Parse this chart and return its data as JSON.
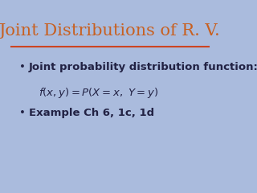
{
  "title": "Joint Distributions of R. V.",
  "title_color": "#c86020",
  "background_color": "#aabbdd",
  "divider_color": "#cc4422",
  "bullet1_line1": "Joint probability distribution function:",
  "bullet1_line2": "$f(x,y) = P(X{=}x,\\ Y{=}y)$",
  "bullet2": "Example Ch 6, 1c, 1d",
  "text_color": "#222244",
  "title_fontsize": 15,
  "body_fontsize": 9.5,
  "formula_fontsize": 9.5
}
